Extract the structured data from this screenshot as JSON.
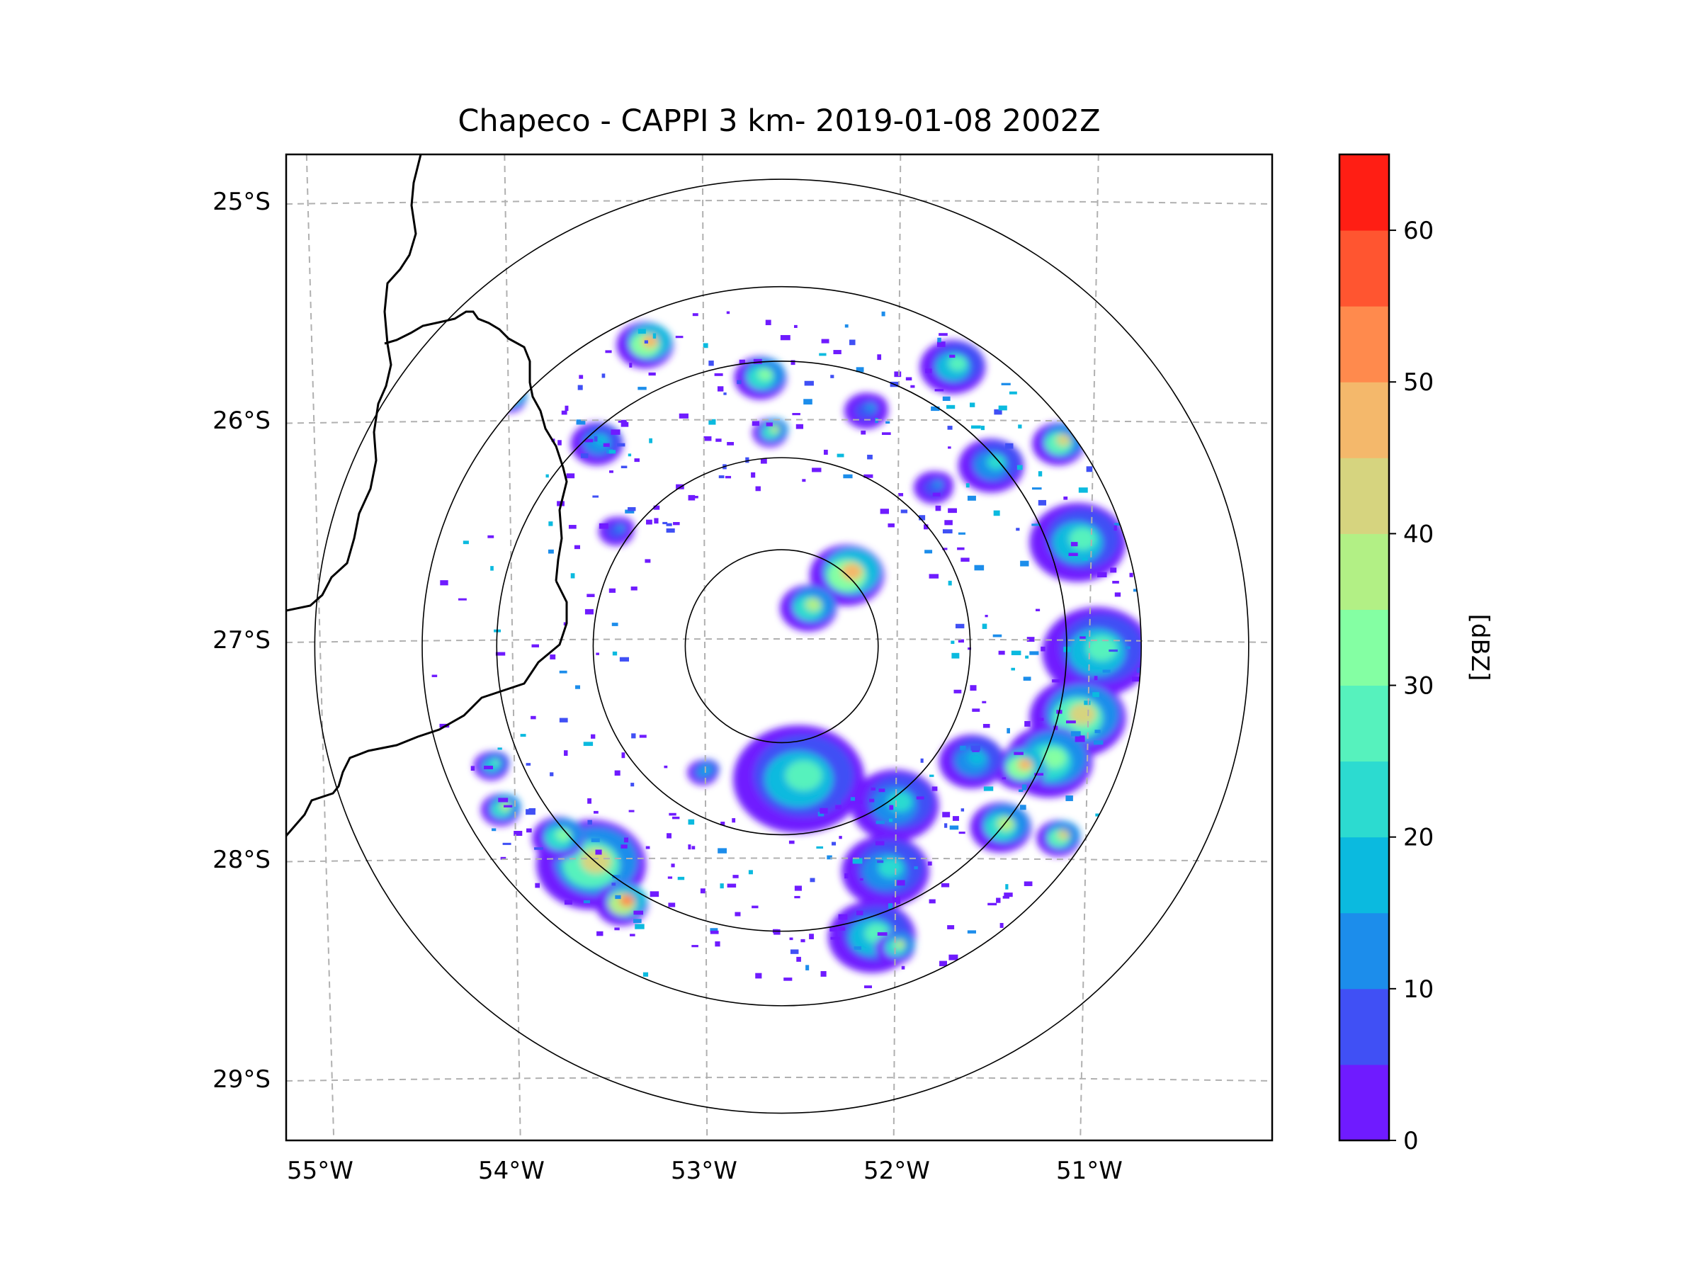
{
  "title": "Chapeco - CAPPI 3 km- 2019-01-08 2002Z",
  "lat_labels": [
    "25°S",
    "26°S",
    "27°S",
    "28°S",
    "29°S"
  ],
  "lon_labels": [
    "55°W",
    "54°W",
    "53°W",
    "52°W",
    "51°W"
  ],
  "colorbar": {
    "label": "[dBZ]",
    "tick_labels": [
      "0",
      "10",
      "20",
      "30",
      "40",
      "50",
      "60"
    ],
    "min": 0,
    "max": 65,
    "step": 5,
    "colors": [
      "#6f1bff",
      "#4050f5",
      "#1c8deb",
      "#0bbadf",
      "#2cdbd0",
      "#56f2bd",
      "#84ffa3",
      "#b2f085",
      "#d6d47f",
      "#f4b86b",
      "#ff8a4d",
      "#ff5530",
      "#ff1e14"
    ]
  },
  "radar": {
    "site": "Chapeco",
    "center_lon": -52.6,
    "center_lat": -27.03,
    "range_rings_deg_lat": [
      0.44,
      0.86,
      1.3,
      1.64,
      2.13
    ]
  },
  "echoes": [
    {
      "lon": -52.25,
      "lat": -26.7,
      "r": 0.17,
      "dbz": 45
    },
    {
      "lon": -52.45,
      "lat": -26.85,
      "r": 0.13,
      "dbz": 35
    },
    {
      "lon": -52.5,
      "lat": -27.63,
      "r": 0.3,
      "dbz": 25
    },
    {
      "lon": -52.0,
      "lat": -27.75,
      "r": 0.2,
      "dbz": 20
    },
    {
      "lon": -52.05,
      "lat": -28.05,
      "r": 0.2,
      "dbz": 20
    },
    {
      "lon": -52.12,
      "lat": -28.35,
      "r": 0.2,
      "dbz": 25
    },
    {
      "lon": -53.58,
      "lat": -28.02,
      "r": 0.25,
      "dbz": 40
    },
    {
      "lon": -53.42,
      "lat": -28.2,
      "r": 0.12,
      "dbz": 50
    },
    {
      "lon": -53.75,
      "lat": -27.9,
      "r": 0.12,
      "dbz": 30
    },
    {
      "lon": -54.1,
      "lat": -27.57,
      "r": 0.08,
      "dbz": 25
    },
    {
      "lon": -54.05,
      "lat": -27.77,
      "r": 0.09,
      "dbz": 35
    },
    {
      "lon": -53.3,
      "lat": -25.65,
      "r": 0.13,
      "dbz": 45
    },
    {
      "lon": -52.7,
      "lat": -25.8,
      "r": 0.12,
      "dbz": 30
    },
    {
      "lon": -52.65,
      "lat": -26.05,
      "r": 0.08,
      "dbz": 35
    },
    {
      "lon": -51.7,
      "lat": -25.75,
      "r": 0.15,
      "dbz": 25
    },
    {
      "lon": -51.5,
      "lat": -26.2,
      "r": 0.15,
      "dbz": 20
    },
    {
      "lon": -51.15,
      "lat": -26.1,
      "r": 0.12,
      "dbz": 40
    },
    {
      "lon": -51.05,
      "lat": -26.55,
      "r": 0.22,
      "dbz": 25
    },
    {
      "lon": -50.95,
      "lat": -27.05,
      "r": 0.25,
      "dbz": 25
    },
    {
      "lon": -51.05,
      "lat": -27.35,
      "r": 0.22,
      "dbz": 40
    },
    {
      "lon": -51.2,
      "lat": -27.55,
      "r": 0.2,
      "dbz": 30
    },
    {
      "lon": -51.35,
      "lat": -27.58,
      "r": 0.12,
      "dbz": 45
    },
    {
      "lon": -51.6,
      "lat": -27.55,
      "r": 0.15,
      "dbz": 15
    },
    {
      "lon": -51.45,
      "lat": -27.85,
      "r": 0.14,
      "dbz": 35
    },
    {
      "lon": -51.15,
      "lat": -27.9,
      "r": 0.1,
      "dbz": 40
    },
    {
      "lon": -52.0,
      "lat": -28.4,
      "r": 0.09,
      "dbz": 35
    },
    {
      "lon": -53.0,
      "lat": -27.6,
      "r": 0.07,
      "dbz": 15
    },
    {
      "lon": -53.55,
      "lat": -26.1,
      "r": 0.12,
      "dbz": 15
    },
    {
      "lon": -53.45,
      "lat": -26.5,
      "r": 0.08,
      "dbz": 10
    },
    {
      "lon": -54.0,
      "lat": -25.9,
      "r": 0.07,
      "dbz": 30
    },
    {
      "lon": -52.15,
      "lat": -25.95,
      "r": 0.1,
      "dbz": 10
    },
    {
      "lon": -51.8,
      "lat": -26.3,
      "r": 0.09,
      "dbz": 10
    }
  ]
}
